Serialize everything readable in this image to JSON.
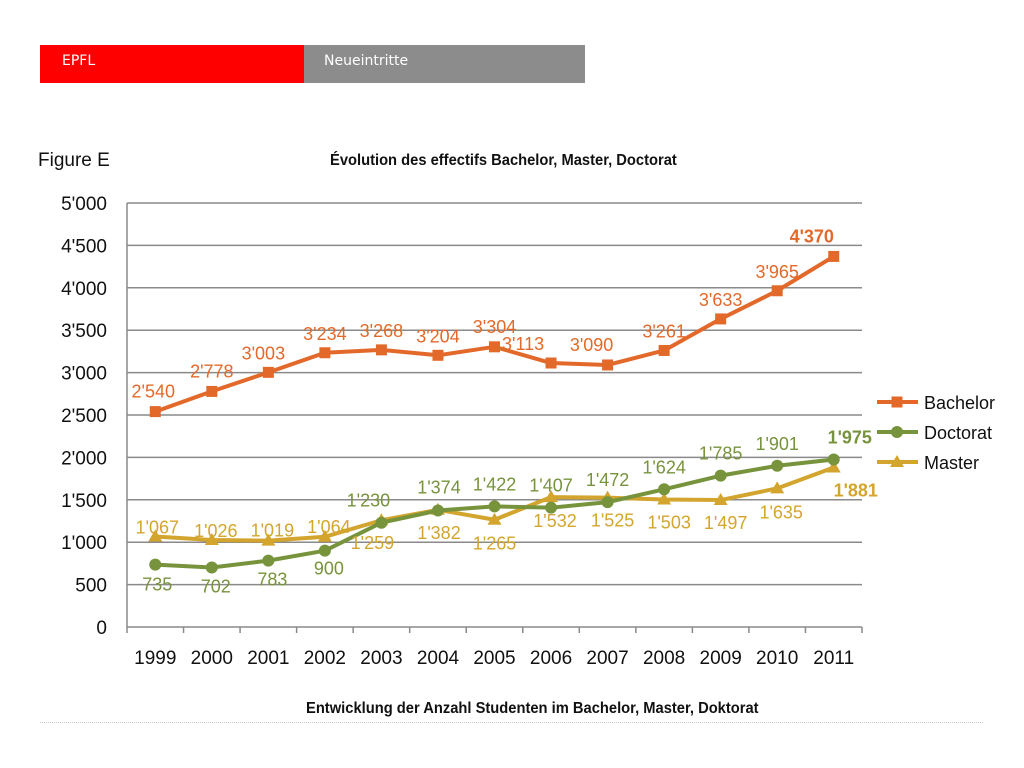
{
  "header": {
    "left_label": "EPFL",
    "right_label": "Neueintritte",
    "left_color": "#ff0000",
    "right_color": "#8c8c8c"
  },
  "figure_label": "Figure E",
  "caption": "Entwicklung der Anzahl Studenten im Bachelor, Master, Doktorat",
  "chart_data": {
    "type": "line",
    "title": "Évolution des effectifs Bachelor, Master, Doctorat",
    "categories": [
      "1999",
      "2000",
      "2001",
      "2002",
      "2003",
      "2004",
      "2005",
      "2006",
      "2007",
      "2008",
      "2009",
      "2010",
      "2011"
    ],
    "ylim": [
      0,
      5000
    ],
    "yticks": [
      0,
      500,
      1000,
      1500,
      2000,
      2500,
      3000,
      3500,
      4000,
      4500,
      5000
    ],
    "ytick_labels": [
      "0",
      "500",
      "1'000",
      "1'500",
      "2'000",
      "2'500",
      "3'000",
      "3'500",
      "4'000",
      "4'500",
      "5'000"
    ],
    "grid": true,
    "legend": "right",
    "series": [
      {
        "name": "Bachelor",
        "color": "#e2692a",
        "marker": "square",
        "values": [
          2540,
          2778,
          3003,
          3234,
          3268,
          3204,
          3304,
          3113,
          3090,
          3261,
          3633,
          3965,
          4370
        ],
        "labels": [
          "2'540",
          "2'778",
          "3'003",
          "3'234",
          "3'268",
          "3'204",
          "3'304",
          "3'113",
          "3'090",
          "3'261",
          "3'633",
          "3'965",
          "4'370"
        ]
      },
      {
        "name": "Doctorat",
        "color": "#77933c",
        "marker": "circle",
        "values": [
          735,
          702,
          783,
          900,
          1230,
          1374,
          1422,
          1407,
          1472,
          1624,
          1785,
          1901,
          1975
        ],
        "labels": [
          "735",
          "702",
          "783",
          "900",
          "1'230",
          "1'374",
          "1'422",
          "1'407",
          "1'472",
          "1'624",
          "1'785",
          "1'901",
          "1'975"
        ]
      },
      {
        "name": "Master",
        "color": "#d4a52e",
        "marker": "triangle",
        "values": [
          1067,
          1026,
          1019,
          1064,
          1259,
          1382,
          1265,
          1532,
          1525,
          1503,
          1497,
          1635,
          1881
        ],
        "labels": [
          "1'067",
          "1'026",
          "1'019",
          "1'064",
          "1'259",
          "1'382",
          "1'265",
          "1'532",
          "1'525",
          "1'503",
          "1'497",
          "1'635",
          "1'881"
        ]
      }
    ]
  }
}
